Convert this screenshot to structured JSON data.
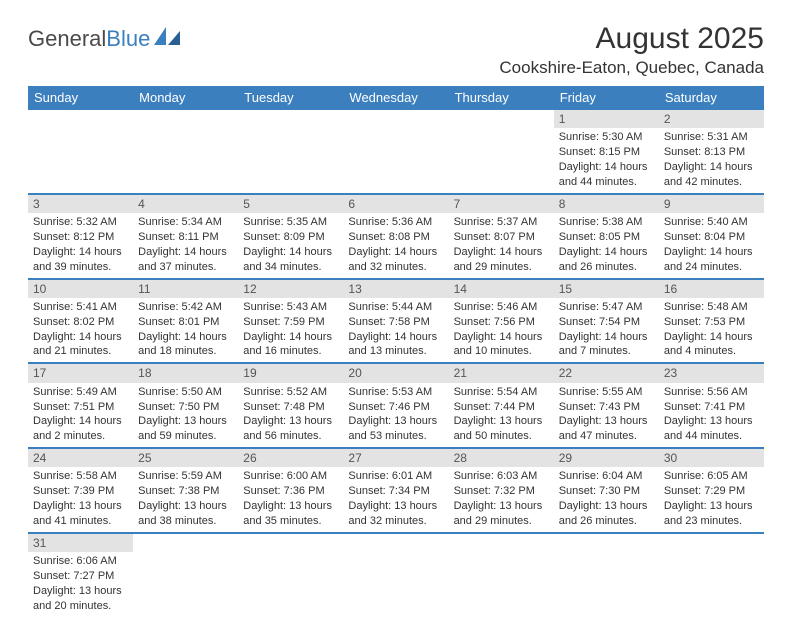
{
  "colors": {
    "header_blue": "#3b7fbf",
    "daynum_bg": "#e3e3e3",
    "text": "#333333",
    "logo_gray": "#4a4a4a",
    "logo_blue": "#3b7fbf",
    "page_bg": "#ffffff"
  },
  "logo": {
    "part1": "General",
    "part2": "Blue"
  },
  "title": "August 2025",
  "location": "Cookshire-Eaton, Quebec, Canada",
  "day_headers": [
    "Sunday",
    "Monday",
    "Tuesday",
    "Wednesday",
    "Thursday",
    "Friday",
    "Saturday"
  ],
  "weeks": [
    [
      {
        "n": "",
        "empty": true
      },
      {
        "n": "",
        "empty": true
      },
      {
        "n": "",
        "empty": true
      },
      {
        "n": "",
        "empty": true
      },
      {
        "n": "",
        "empty": true
      },
      {
        "n": "1",
        "sunrise": "Sunrise: 5:30 AM",
        "sunset": "Sunset: 8:15 PM",
        "day1": "Daylight: 14 hours",
        "day2": "and 44 minutes."
      },
      {
        "n": "2",
        "sunrise": "Sunrise: 5:31 AM",
        "sunset": "Sunset: 8:13 PM",
        "day1": "Daylight: 14 hours",
        "day2": "and 42 minutes."
      }
    ],
    [
      {
        "n": "3",
        "sunrise": "Sunrise: 5:32 AM",
        "sunset": "Sunset: 8:12 PM",
        "day1": "Daylight: 14 hours",
        "day2": "and 39 minutes."
      },
      {
        "n": "4",
        "sunrise": "Sunrise: 5:34 AM",
        "sunset": "Sunset: 8:11 PM",
        "day1": "Daylight: 14 hours",
        "day2": "and 37 minutes."
      },
      {
        "n": "5",
        "sunrise": "Sunrise: 5:35 AM",
        "sunset": "Sunset: 8:09 PM",
        "day1": "Daylight: 14 hours",
        "day2": "and 34 minutes."
      },
      {
        "n": "6",
        "sunrise": "Sunrise: 5:36 AM",
        "sunset": "Sunset: 8:08 PM",
        "day1": "Daylight: 14 hours",
        "day2": "and 32 minutes."
      },
      {
        "n": "7",
        "sunrise": "Sunrise: 5:37 AM",
        "sunset": "Sunset: 8:07 PM",
        "day1": "Daylight: 14 hours",
        "day2": "and 29 minutes."
      },
      {
        "n": "8",
        "sunrise": "Sunrise: 5:38 AM",
        "sunset": "Sunset: 8:05 PM",
        "day1": "Daylight: 14 hours",
        "day2": "and 26 minutes."
      },
      {
        "n": "9",
        "sunrise": "Sunrise: 5:40 AM",
        "sunset": "Sunset: 8:04 PM",
        "day1": "Daylight: 14 hours",
        "day2": "and 24 minutes."
      }
    ],
    [
      {
        "n": "10",
        "sunrise": "Sunrise: 5:41 AM",
        "sunset": "Sunset: 8:02 PM",
        "day1": "Daylight: 14 hours",
        "day2": "and 21 minutes."
      },
      {
        "n": "11",
        "sunrise": "Sunrise: 5:42 AM",
        "sunset": "Sunset: 8:01 PM",
        "day1": "Daylight: 14 hours",
        "day2": "and 18 minutes."
      },
      {
        "n": "12",
        "sunrise": "Sunrise: 5:43 AM",
        "sunset": "Sunset: 7:59 PM",
        "day1": "Daylight: 14 hours",
        "day2": "and 16 minutes."
      },
      {
        "n": "13",
        "sunrise": "Sunrise: 5:44 AM",
        "sunset": "Sunset: 7:58 PM",
        "day1": "Daylight: 14 hours",
        "day2": "and 13 minutes."
      },
      {
        "n": "14",
        "sunrise": "Sunrise: 5:46 AM",
        "sunset": "Sunset: 7:56 PM",
        "day1": "Daylight: 14 hours",
        "day2": "and 10 minutes."
      },
      {
        "n": "15",
        "sunrise": "Sunrise: 5:47 AM",
        "sunset": "Sunset: 7:54 PM",
        "day1": "Daylight: 14 hours",
        "day2": "and 7 minutes."
      },
      {
        "n": "16",
        "sunrise": "Sunrise: 5:48 AM",
        "sunset": "Sunset: 7:53 PM",
        "day1": "Daylight: 14 hours",
        "day2": "and 4 minutes."
      }
    ],
    [
      {
        "n": "17",
        "sunrise": "Sunrise: 5:49 AM",
        "sunset": "Sunset: 7:51 PM",
        "day1": "Daylight: 14 hours",
        "day2": "and 2 minutes."
      },
      {
        "n": "18",
        "sunrise": "Sunrise: 5:50 AM",
        "sunset": "Sunset: 7:50 PM",
        "day1": "Daylight: 13 hours",
        "day2": "and 59 minutes."
      },
      {
        "n": "19",
        "sunrise": "Sunrise: 5:52 AM",
        "sunset": "Sunset: 7:48 PM",
        "day1": "Daylight: 13 hours",
        "day2": "and 56 minutes."
      },
      {
        "n": "20",
        "sunrise": "Sunrise: 5:53 AM",
        "sunset": "Sunset: 7:46 PM",
        "day1": "Daylight: 13 hours",
        "day2": "and 53 minutes."
      },
      {
        "n": "21",
        "sunrise": "Sunrise: 5:54 AM",
        "sunset": "Sunset: 7:44 PM",
        "day1": "Daylight: 13 hours",
        "day2": "and 50 minutes."
      },
      {
        "n": "22",
        "sunrise": "Sunrise: 5:55 AM",
        "sunset": "Sunset: 7:43 PM",
        "day1": "Daylight: 13 hours",
        "day2": "and 47 minutes."
      },
      {
        "n": "23",
        "sunrise": "Sunrise: 5:56 AM",
        "sunset": "Sunset: 7:41 PM",
        "day1": "Daylight: 13 hours",
        "day2": "and 44 minutes."
      }
    ],
    [
      {
        "n": "24",
        "sunrise": "Sunrise: 5:58 AM",
        "sunset": "Sunset: 7:39 PM",
        "day1": "Daylight: 13 hours",
        "day2": "and 41 minutes."
      },
      {
        "n": "25",
        "sunrise": "Sunrise: 5:59 AM",
        "sunset": "Sunset: 7:38 PM",
        "day1": "Daylight: 13 hours",
        "day2": "and 38 minutes."
      },
      {
        "n": "26",
        "sunrise": "Sunrise: 6:00 AM",
        "sunset": "Sunset: 7:36 PM",
        "day1": "Daylight: 13 hours",
        "day2": "and 35 minutes."
      },
      {
        "n": "27",
        "sunrise": "Sunrise: 6:01 AM",
        "sunset": "Sunset: 7:34 PM",
        "day1": "Daylight: 13 hours",
        "day2": "and 32 minutes."
      },
      {
        "n": "28",
        "sunrise": "Sunrise: 6:03 AM",
        "sunset": "Sunset: 7:32 PM",
        "day1": "Daylight: 13 hours",
        "day2": "and 29 minutes."
      },
      {
        "n": "29",
        "sunrise": "Sunrise: 6:04 AM",
        "sunset": "Sunset: 7:30 PM",
        "day1": "Daylight: 13 hours",
        "day2": "and 26 minutes."
      },
      {
        "n": "30",
        "sunrise": "Sunrise: 6:05 AM",
        "sunset": "Sunset: 7:29 PM",
        "day1": "Daylight: 13 hours",
        "day2": "and 23 minutes."
      }
    ],
    [
      {
        "n": "31",
        "sunrise": "Sunrise: 6:06 AM",
        "sunset": "Sunset: 7:27 PM",
        "day1": "Daylight: 13 hours",
        "day2": "and 20 minutes."
      },
      {
        "n": "",
        "empty": true
      },
      {
        "n": "",
        "empty": true
      },
      {
        "n": "",
        "empty": true
      },
      {
        "n": "",
        "empty": true
      },
      {
        "n": "",
        "empty": true
      },
      {
        "n": "",
        "empty": true
      }
    ]
  ]
}
